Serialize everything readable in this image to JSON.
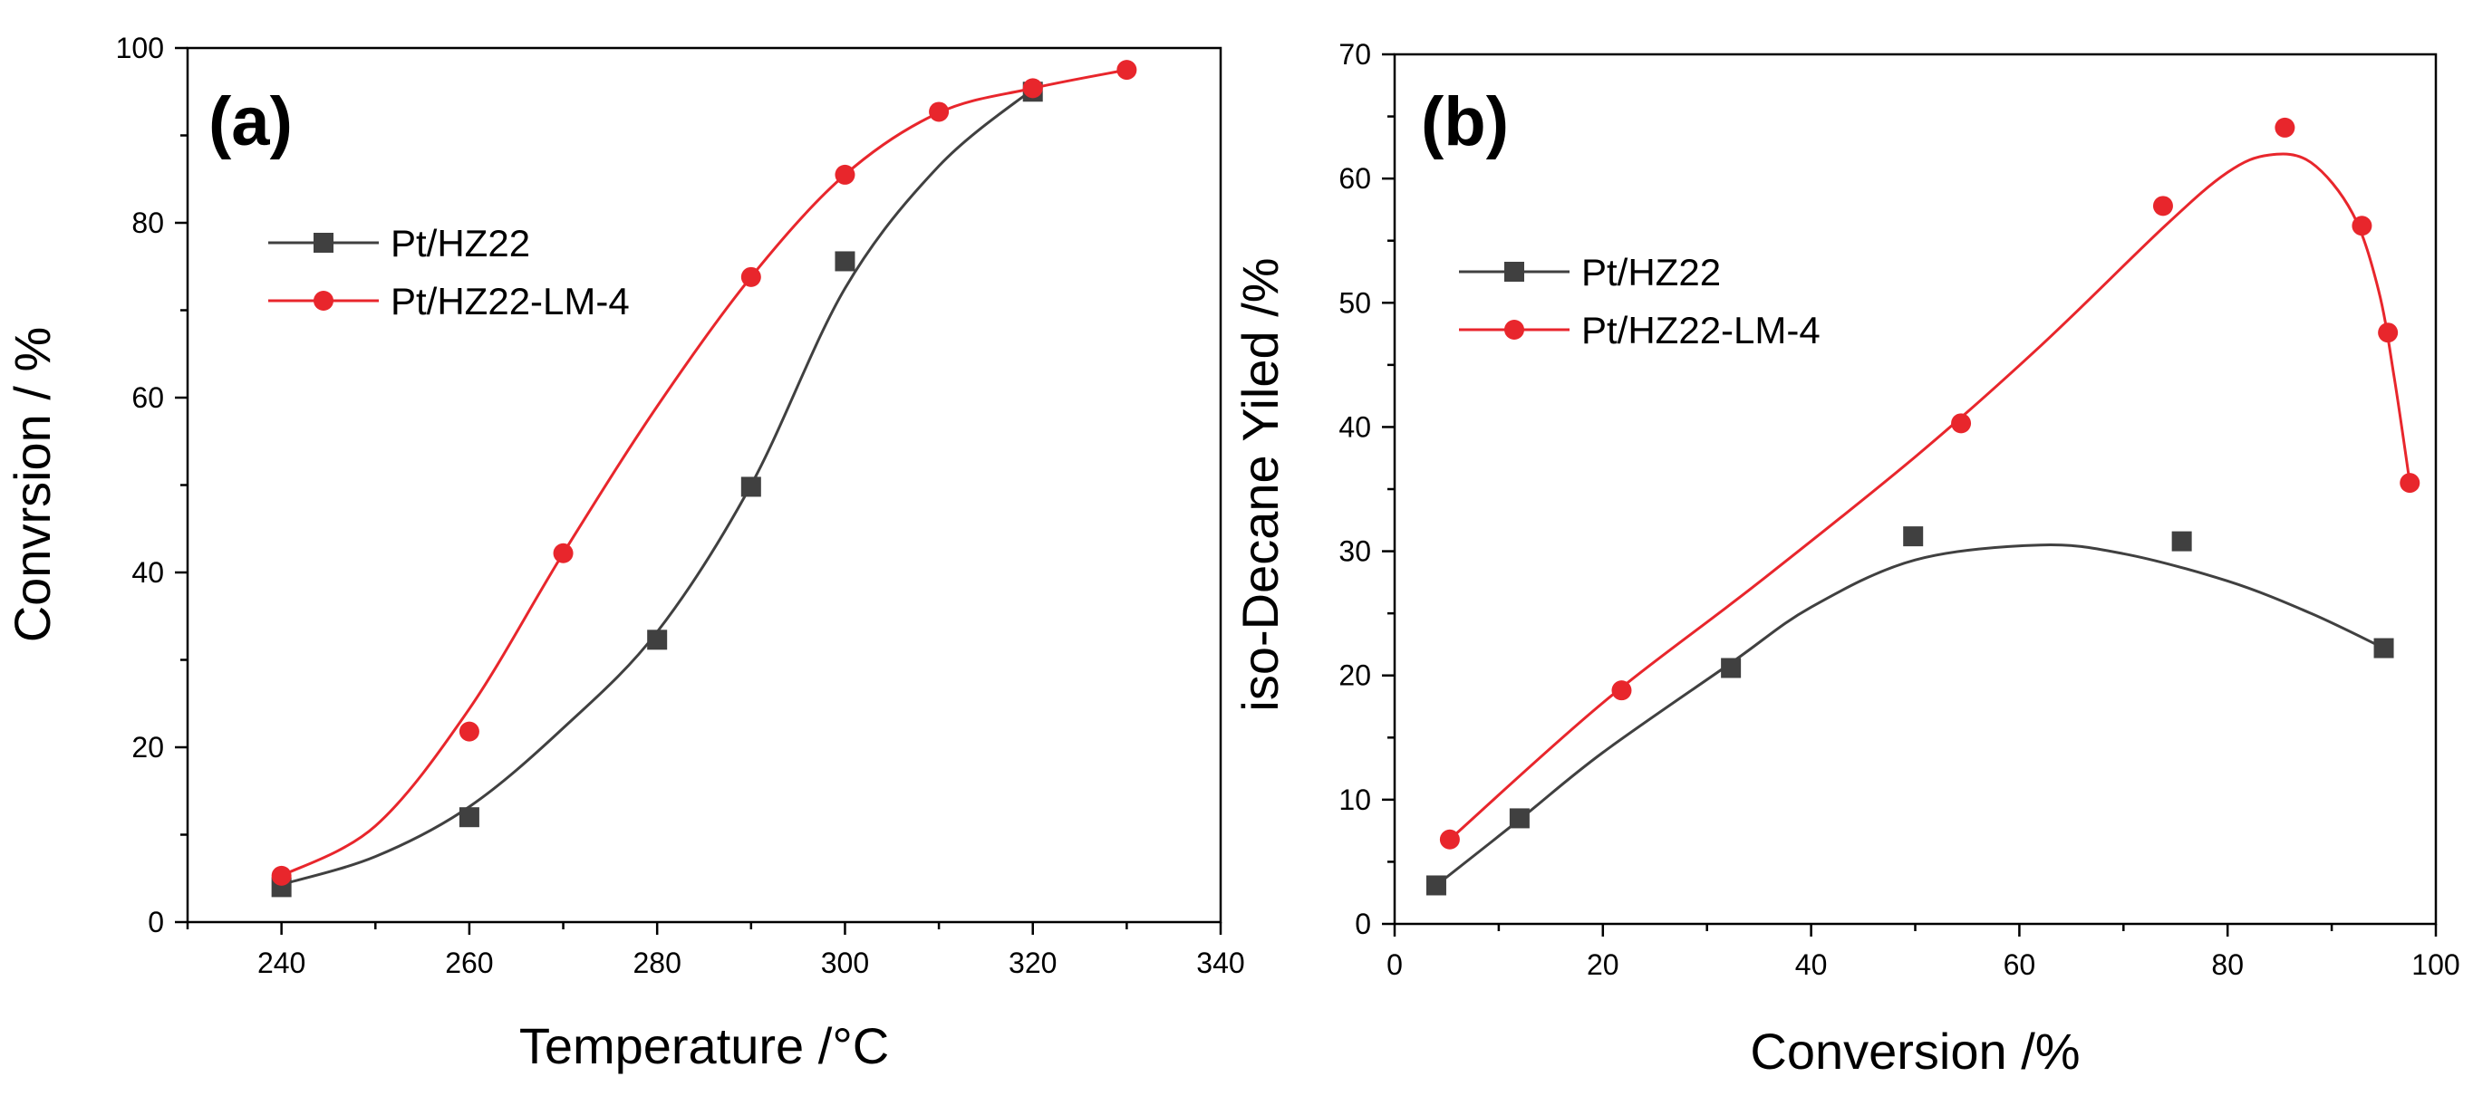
{
  "chart_data": [
    {
      "type": "line",
      "panel_label": "(a)",
      "xlabel": "Temperature /°C",
      "ylabel": "Convrsion / %",
      "xlim": [
        230,
        340
      ],
      "ylim": [
        0,
        100
      ],
      "xticks": [
        240,
        260,
        280,
        300,
        320,
        340
      ],
      "yticks": [
        0,
        20,
        40,
        60,
        80,
        100
      ],
      "grid": false,
      "legend_placement": "upper-left",
      "series": [
        {
          "name": "Pt/HZ22",
          "marker": "square",
          "color": "#404040",
          "x": [
            240,
            260,
            280,
            290,
            300,
            320
          ],
          "y": [
            4,
            12,
            32.3,
            49.8,
            75.6,
            95
          ],
          "fit": [
            [
              240,
              4.3
            ],
            [
              250,
              7.5
            ],
            [
              260,
              13.2
            ],
            [
              270,
              22.2
            ],
            [
              280,
              33.2
            ],
            [
              290,
              50
            ],
            [
              300,
              72.5
            ],
            [
              310,
              86.5
            ],
            [
              320,
              95.3
            ]
          ]
        },
        {
          "name": "Pt/HZ22-LM-4",
          "marker": "circle",
          "color": "#e8262c",
          "x": [
            240,
            260,
            270,
            290,
            300,
            310,
            320,
            330
          ],
          "y": [
            5.3,
            21.8,
            42.2,
            73.8,
            85.5,
            92.7,
            95.4,
            97.5
          ],
          "fit": [
            [
              240,
              5.3
            ],
            [
              250,
              11
            ],
            [
              260,
              24.4
            ],
            [
              270,
              42.2
            ],
            [
              280,
              59
            ],
            [
              290,
              73.8
            ],
            [
              300,
              85.5
            ],
            [
              310,
              92.6
            ],
            [
              320,
              95.4
            ],
            [
              330,
              97.5
            ]
          ]
        }
      ]
    },
    {
      "type": "line",
      "panel_label": "(b)",
      "xlabel": "Conversion /%",
      "ylabel": "iso-Decane Yiled /%",
      "xlim": [
        0,
        100
      ],
      "ylim": [
        0,
        70
      ],
      "xticks": [
        0,
        20,
        40,
        60,
        80,
        100
      ],
      "yticks": [
        0,
        10,
        20,
        30,
        40,
        50,
        60,
        70
      ],
      "grid": false,
      "legend_placement": "middle-left",
      "series": [
        {
          "name": "Pt/HZ22",
          "marker": "square",
          "color": "#404040",
          "x": [
            4,
            12,
            32.3,
            49.8,
            75.6,
            95
          ],
          "y": [
            3.1,
            8.5,
            20.6,
            31.2,
            30.8,
            22.2
          ],
          "fit": [
            [
              4,
              3.1
            ],
            [
              12,
              8.4
            ],
            [
              20,
              13.8
            ],
            [
              32.3,
              21
            ],
            [
              40,
              25.5
            ],
            [
              50,
              29.3
            ],
            [
              62,
              30.5
            ],
            [
              70,
              29.8
            ],
            [
              80,
              27.6
            ],
            [
              88,
              25
            ],
            [
              95,
              22.2
            ]
          ]
        },
        {
          "name": "Pt/HZ22-LM-4",
          "marker": "circle",
          "color": "#e8262c",
          "x": [
            5.3,
            21.8,
            54.4,
            73.8,
            85.5,
            92.9,
            95.4,
            97.5
          ],
          "y": [
            6.8,
            18.8,
            40.3,
            57.8,
            64.1,
            56.2,
            47.6,
            35.5
          ],
          "fit": [
            [
              5.3,
              6.8
            ],
            [
              20,
              17.8
            ],
            [
              35,
              27.5
            ],
            [
              50,
              37.6
            ],
            [
              62,
              46.5
            ],
            [
              74,
              56.2
            ],
            [
              80,
              60.5
            ],
            [
              84,
              61.9
            ],
            [
              88,
              61.3
            ],
            [
              92,
              57.2
            ],
            [
              94.5,
              51
            ],
            [
              96,
              44
            ],
            [
              97.5,
              35.5
            ]
          ]
        }
      ]
    }
  ]
}
